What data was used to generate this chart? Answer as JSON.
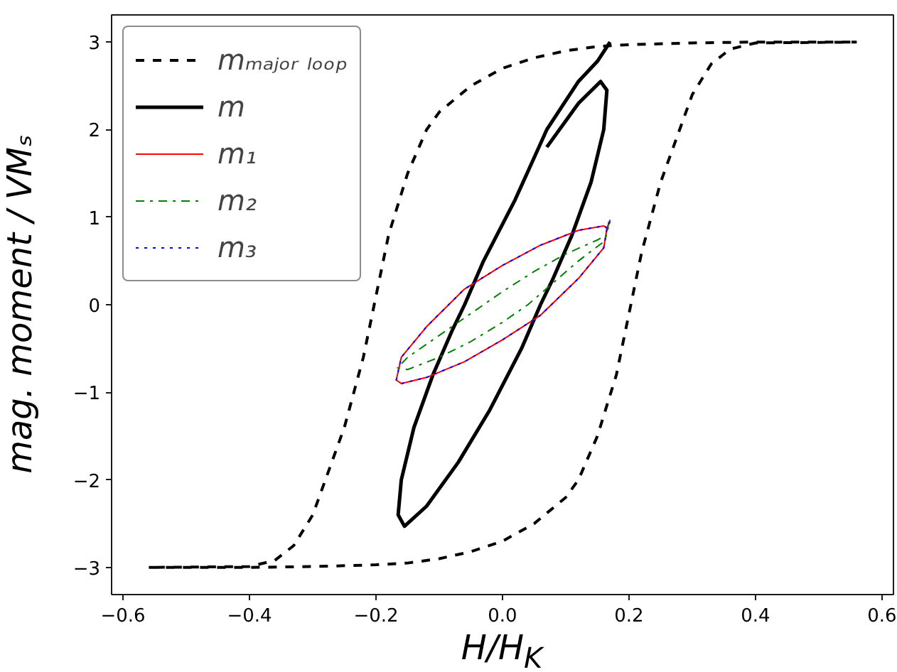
{
  "chart_data": {
    "type": "line",
    "xlabel": "H/H$_{K}$",
    "ylabel": "mag. moment / VMₛ",
    "xlim": [
      -0.618,
      0.618
    ],
    "ylim": [
      -3.31,
      3.31
    ],
    "xticks": [
      {
        "value": -0.6,
        "label": "−0.6"
      },
      {
        "value": -0.4,
        "label": "−0.4"
      },
      {
        "value": -0.2,
        "label": "−0.2"
      },
      {
        "value": 0,
        "label": "0.0"
      },
      {
        "value": 0.2,
        "label": "0.2"
      },
      {
        "value": 0.4,
        "label": "0.4"
      },
      {
        "value": 0.6,
        "label": "0.6"
      }
    ],
    "yticks": [
      {
        "value": -3,
        "label": "−3"
      },
      {
        "value": -2,
        "label": "−2"
      },
      {
        "value": -1,
        "label": "−1"
      },
      0,
      1,
      2,
      3
    ],
    "grid": false,
    "legend": "top left",
    "marker": "none",
    "series": [
      {
        "name": "mₘₐⱼₒᵣ ₗₒₒₚ",
        "color": "#000000",
        "line_style": "dashed",
        "x": [
          0.55,
          0.4,
          0.3,
          0.2,
          0.15,
          0.1,
          0.05,
          0.0,
          -0.05,
          -0.1,
          -0.12,
          -0.15,
          -0.18,
          -0.2,
          -0.22,
          -0.25,
          -0.28,
          -0.3,
          -0.33,
          -0.36,
          -0.4,
          -0.56,
          -0.4,
          -0.3,
          -0.2,
          -0.15,
          -0.1,
          -0.05,
          0.0,
          0.05,
          0.1,
          0.12,
          0.15,
          0.18,
          0.2,
          0.22,
          0.25,
          0.28,
          0.3,
          0.33,
          0.36,
          0.4,
          0.56
        ],
        "values": [
          3,
          3,
          2.99,
          2.97,
          2.95,
          2.9,
          2.82,
          2.7,
          2.5,
          2.2,
          2.0,
          1.5,
          0.8,
          0.1,
          -0.6,
          -1.4,
          -2.0,
          -2.4,
          -2.75,
          -2.92,
          -2.99,
          -3,
          -3,
          -2.99,
          -2.97,
          -2.95,
          -2.9,
          -2.82,
          -2.7,
          -2.5,
          -2.2,
          -2.0,
          -1.5,
          -0.8,
          -0.1,
          0.6,
          1.4,
          2.0,
          2.4,
          2.75,
          2.92,
          2.99,
          3
        ]
      },
      {
        "name": "m",
        "color": "#000000",
        "line_style": "solid",
        "x": [
          0.17,
          0.15,
          0.12,
          0.07,
          0.02,
          -0.03,
          -0.06,
          -0.08,
          -0.11,
          -0.14,
          -0.16,
          -0.165,
          -0.155,
          -0.12,
          -0.07,
          -0.02,
          0.03,
          0.06,
          0.08,
          0.11,
          0.14,
          0.16,
          0.165,
          0.155,
          0.12,
          0.07
        ],
        "values": [
          3.0,
          2.78,
          2.55,
          2.0,
          1.2,
          0.5,
          0.0,
          -0.3,
          -0.8,
          -1.4,
          -2.0,
          -2.4,
          -2.53,
          -2.3,
          -1.8,
          -1.2,
          -0.5,
          0.0,
          0.3,
          0.8,
          1.4,
          2.0,
          2.45,
          2.55,
          2.3,
          1.8
        ]
      },
      {
        "name": "m₁",
        "color": "#ff0000",
        "line_style": "solid",
        "x": [
          0.17,
          0.165,
          0.16,
          0.12,
          0.06,
          0.0,
          -0.06,
          -0.12,
          -0.16,
          -0.168,
          -0.16,
          -0.12,
          -0.06,
          0.0,
          0.06,
          0.12,
          0.16,
          0.168
        ],
        "values": [
          0.97,
          0.87,
          0.65,
          0.3,
          -0.12,
          -0.4,
          -0.65,
          -0.83,
          -0.9,
          -0.86,
          -0.6,
          -0.25,
          0.18,
          0.45,
          0.68,
          0.85,
          0.9,
          0.87
        ]
      },
      {
        "name": "m₂",
        "color": "#008000",
        "line_style": "dashdot",
        "x": [
          0.168,
          0.165,
          0.16,
          0.12,
          0.08,
          0.04,
          0.0,
          -0.05,
          -0.1,
          -0.15,
          -0.166,
          -0.15,
          -0.1,
          -0.05,
          0.0,
          0.05,
          0.1,
          0.15,
          0.165
        ],
        "values": [
          0.95,
          0.8,
          0.72,
          0.5,
          0.25,
          0.0,
          -0.2,
          -0.42,
          -0.6,
          -0.74,
          -0.72,
          -0.6,
          -0.35,
          -0.1,
          0.15,
          0.38,
          0.58,
          0.74,
          0.8
        ]
      },
      {
        "name": "m₃",
        "color": "#0000ff",
        "line_style": "dotted",
        "x": [
          0.17,
          0.165,
          0.16,
          0.12,
          0.06,
          0.0,
          -0.06,
          -0.12,
          -0.16,
          -0.168,
          -0.16,
          -0.12,
          -0.06,
          0.0,
          0.06,
          0.12,
          0.16,
          0.168
        ],
        "values": [
          0.95,
          0.86,
          0.65,
          0.3,
          -0.12,
          -0.4,
          -0.65,
          -0.83,
          -0.9,
          -0.86,
          -0.6,
          -0.25,
          0.18,
          0.45,
          0.68,
          0.85,
          0.9,
          0.86
        ]
      }
    ]
  }
}
